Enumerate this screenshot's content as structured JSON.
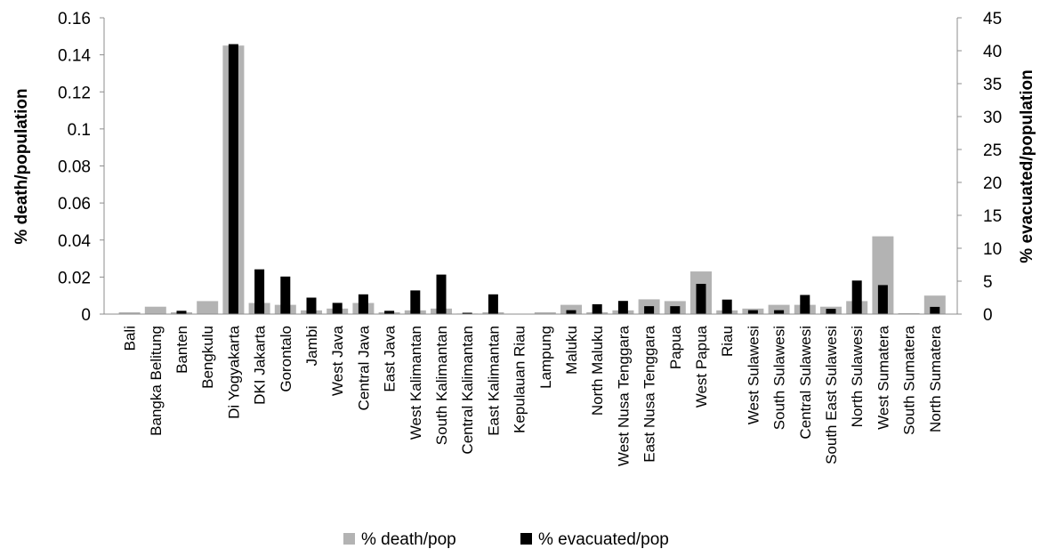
{
  "chart_data": {
    "type": "bar",
    "categories": [
      "Bali",
      "Bangka Belitung",
      "Banten",
      "Bengkulu",
      "Di Yogyakarta",
      "DKI Jakarta",
      "Gorontalo",
      "Jambi",
      "West Java",
      "Central Java",
      "East Java",
      "West Kalimantan",
      "South Kalimantan",
      "Central Kalimantan",
      "East Kalimantan",
      "Kepulauan Riau",
      "Lampung",
      "Maluku",
      "North Maluku",
      "West Nusa Tenggara",
      "East Nusa Tenggara",
      "Papua",
      "West Papua",
      "Riau",
      "West Sulawesi",
      "South Sulawesi",
      "Central Sulawesi",
      "South East Sulawesi",
      "North Sulawesi",
      "West Sumatera",
      "South Sumatera",
      "North Sumatera"
    ],
    "series": [
      {
        "name": "% death/pop",
        "axis": "left",
        "color": "#b3b3b3",
        "values": [
          0.001,
          0.004,
          0.001,
          0.007,
          0.145,
          0.006,
          0.005,
          0.002,
          0.003,
          0.006,
          0.001,
          0.002,
          0.003,
          0.0003,
          0.001,
          0.0,
          0.001,
          0.005,
          0.001,
          0.002,
          0.008,
          0.007,
          0.023,
          0.002,
          0.003,
          0.005,
          0.005,
          0.004,
          0.007,
          0.042,
          0.0005,
          0.01
        ]
      },
      {
        "name": "% evacuated/pop",
        "axis": "right",
        "color": "#000000",
        "values": [
          0.0,
          0.0,
          0.5,
          0.0,
          41.0,
          6.8,
          5.7,
          2.5,
          1.7,
          3.0,
          0.5,
          3.6,
          6.0,
          0.2,
          3.0,
          0.0,
          0.0,
          0.6,
          1.5,
          2.0,
          1.2,
          1.2,
          4.6,
          2.2,
          0.6,
          0.6,
          2.9,
          0.8,
          5.1,
          4.4,
          0.0,
          1.1
        ]
      }
    ],
    "y_left": {
      "label": "% death/population",
      "ylim": [
        0,
        0.16
      ],
      "ticks": [
        "0",
        "0.02",
        "0.04",
        "0.06",
        "0.08",
        "0.1",
        "0.12",
        "0.14",
        "0.16"
      ]
    },
    "y_right": {
      "label": "% evacuated/population",
      "ylim": [
        0,
        45
      ],
      "ticks": [
        "0",
        "5",
        "10",
        "15",
        "20",
        "25",
        "30",
        "35",
        "40",
        "45"
      ]
    },
    "legend_position": "bottom",
    "grid": false
  }
}
